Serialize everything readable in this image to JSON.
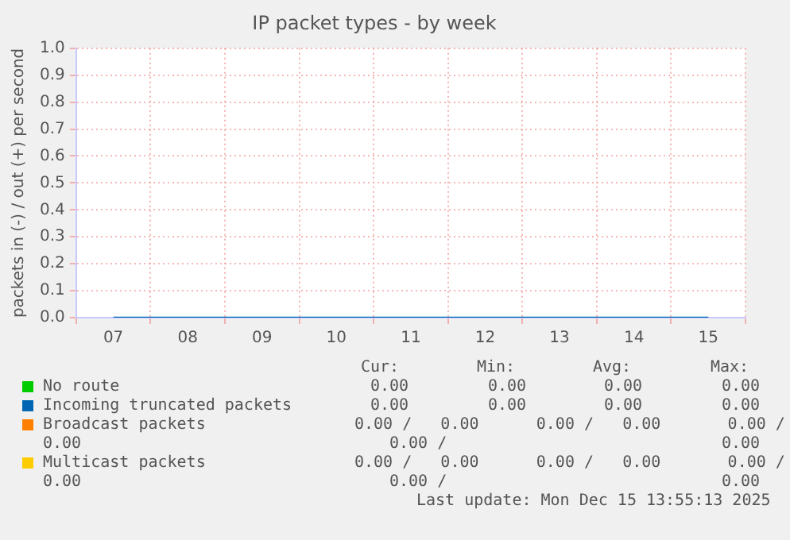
{
  "chart_data": {
    "type": "line",
    "title": "IP packet types - by week",
    "ylabel": "packets in (-) / out (+) per second",
    "categories": [
      "07",
      "08",
      "09",
      "10",
      "11",
      "12",
      "13",
      "14",
      "15"
    ],
    "series": [
      {
        "name": "No route",
        "color": "#00cc00",
        "values": [
          null,
          null,
          null,
          null,
          null,
          null,
          null,
          null,
          null
        ]
      },
      {
        "name": "Incoming truncated packets",
        "color": "#0066b3",
        "values": [
          0,
          0,
          0,
          0,
          0,
          0,
          0,
          0,
          0
        ]
      },
      {
        "name": "Broadcast packets",
        "color": "#ff8000",
        "values": [
          null,
          null,
          null,
          null,
          null,
          null,
          null,
          null,
          null
        ]
      },
      {
        "name": "Multicast packets",
        "color": "#ffcc00",
        "values": [
          null,
          null,
          null,
          null,
          null,
          null,
          null,
          null,
          null
        ]
      }
    ],
    "ylim": [
      0,
      1
    ],
    "yticks": [
      {
        "value": 0,
        "label": "0.0"
      },
      {
        "value": 0.1,
        "label": "0.1"
      },
      {
        "value": 0.2,
        "label": "0.2"
      },
      {
        "value": 0.3,
        "label": "0.3"
      },
      {
        "value": 0.4,
        "label": "0.4"
      },
      {
        "value": 0.5,
        "label": "0.5"
      },
      {
        "value": 0.6,
        "label": "0.6"
      },
      {
        "value": 0.7,
        "label": "0.7"
      },
      {
        "value": 0.8,
        "label": "0.8"
      },
      {
        "value": 0.9,
        "label": "0.9"
      },
      {
        "value": 1,
        "label": "1.0"
      }
    ],
    "grid": true,
    "legend": "bottom",
    "marker": "none",
    "line_style": "solid",
    "annotations": [
      "Cur:",
      "Min:",
      "Avg:",
      "Max:",
      "0.00",
      "0.00",
      "0.00",
      "0.00",
      "0.00",
      "0.00",
      "0.00",
      "0.00",
      "0.00 /   0.00      0.00 /   0.00       0.00 /",
      "0.00",
      "0.00 /",
      "0.00",
      "0.00 /   0.00      0.00 /   0.00       0.00 /",
      "0.00",
      "0.00 /",
      "0.00",
      "Last update: Mon Dec 15 13:55:13 2025"
    ]
  }
}
